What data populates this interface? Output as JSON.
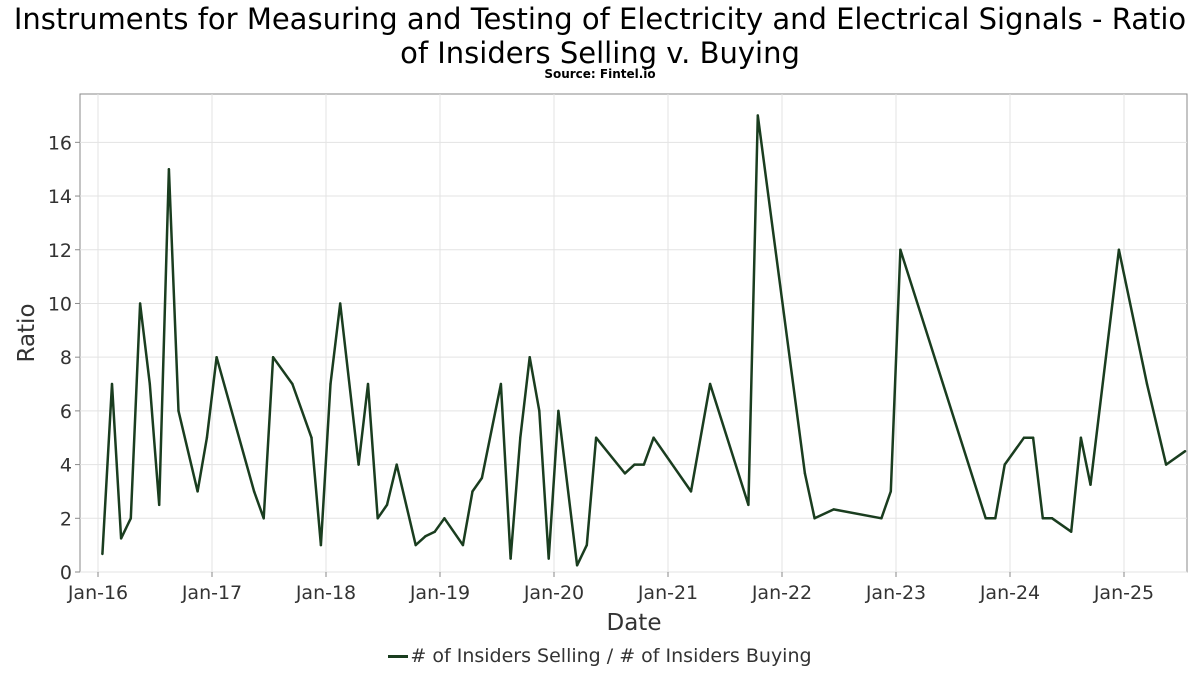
{
  "chart_data": {
    "type": "line",
    "title": "Instruments for Measuring and Testing of Electricity and Electrical Signals - Ratio of Insiders Selling v. Buying",
    "subtitle": "Source: Fintel.io",
    "xlabel": "Date",
    "ylabel": "Ratio",
    "ylim": [
      0,
      17.8
    ],
    "yticks": [
      0,
      2,
      4,
      6,
      8,
      10,
      12,
      14,
      16
    ],
    "xticks": [
      "Jan-16",
      "Jan-17",
      "Jan-18",
      "Jan-19",
      "Jan-20",
      "Jan-21",
      "Jan-22",
      "Jan-23",
      "Jan-24",
      "Jan-25"
    ],
    "grid": true,
    "legend_position": "bottom",
    "line_color": "#1a3d1f",
    "series": [
      {
        "name": "# of Insiders Selling / # of Insiders Buying",
        "points": [
          [
            "2016-01-15",
            0.67
          ],
          [
            "2016-02-15",
            7.0
          ],
          [
            "2016-03-15",
            1.25
          ],
          [
            "2016-04-15",
            2.0
          ],
          [
            "2016-05-15",
            10.0
          ],
          [
            "2016-06-15",
            7.0
          ],
          [
            "2016-07-15",
            2.5
          ],
          [
            "2016-08-15",
            15.0
          ],
          [
            "2016-09-15",
            6.0
          ],
          [
            "2016-11-15",
            3.0
          ],
          [
            "2016-12-15",
            5.0
          ],
          [
            "2017-01-15",
            8.0
          ],
          [
            "2017-05-15",
            3.0
          ],
          [
            "2017-06-15",
            2.0
          ],
          [
            "2017-07-15",
            8.0
          ],
          [
            "2017-09-15",
            7.0
          ],
          [
            "2017-11-15",
            5.0
          ],
          [
            "2017-12-15",
            1.0
          ],
          [
            "2018-01-15",
            7.0
          ],
          [
            "2018-02-15",
            10.0
          ],
          [
            "2018-04-15",
            4.0
          ],
          [
            "2018-05-15",
            7.0
          ],
          [
            "2018-06-15",
            2.0
          ],
          [
            "2018-07-15",
            2.5
          ],
          [
            "2018-08-15",
            4.0
          ],
          [
            "2018-10-15",
            1.0
          ],
          [
            "2018-11-15",
            1.33
          ],
          [
            "2018-12-15",
            1.5
          ],
          [
            "2019-01-15",
            2.0
          ],
          [
            "2019-03-15",
            1.0
          ],
          [
            "2019-04-15",
            3.0
          ],
          [
            "2019-05-15",
            3.5
          ],
          [
            "2019-07-15",
            7.0
          ],
          [
            "2019-08-15",
            0.5
          ],
          [
            "2019-09-15",
            5.0
          ],
          [
            "2019-10-15",
            8.0
          ],
          [
            "2019-11-15",
            6.0
          ],
          [
            "2019-12-15",
            0.5
          ],
          [
            "2020-01-15",
            6.0
          ],
          [
            "2020-03-15",
            0.25
          ],
          [
            "2020-04-15",
            1.0
          ],
          [
            "2020-05-15",
            5.0
          ],
          [
            "2020-08-15",
            3.67
          ],
          [
            "2020-09-15",
            4.0
          ],
          [
            "2020-10-15",
            4.0
          ],
          [
            "2020-11-15",
            5.0
          ],
          [
            "2021-03-15",
            3.0
          ],
          [
            "2021-05-15",
            7.0
          ],
          [
            "2021-09-15",
            2.5
          ],
          [
            "2021-10-15",
            17.0
          ],
          [
            "2022-03-15",
            3.67
          ],
          [
            "2022-04-15",
            2.0
          ],
          [
            "2022-06-15",
            2.33
          ],
          [
            "2022-11-15",
            2.0
          ],
          [
            "2022-12-15",
            3.0
          ],
          [
            "2023-01-15",
            12.0
          ],
          [
            "2023-10-15",
            2.0
          ],
          [
            "2023-11-15",
            2.0
          ],
          [
            "2023-12-15",
            4.0
          ],
          [
            "2024-02-15",
            5.0
          ],
          [
            "2024-03-15",
            5.0
          ],
          [
            "2024-04-15",
            2.0
          ],
          [
            "2024-05-15",
            2.0
          ],
          [
            "2024-07-15",
            1.5
          ],
          [
            "2024-08-15",
            5.0
          ],
          [
            "2024-09-15",
            3.25
          ],
          [
            "2024-12-15",
            12.0
          ],
          [
            "2025-03-15",
            7.0
          ],
          [
            "2025-05-15",
            4.0
          ],
          [
            "2025-07-15",
            4.5
          ]
        ]
      }
    ]
  }
}
